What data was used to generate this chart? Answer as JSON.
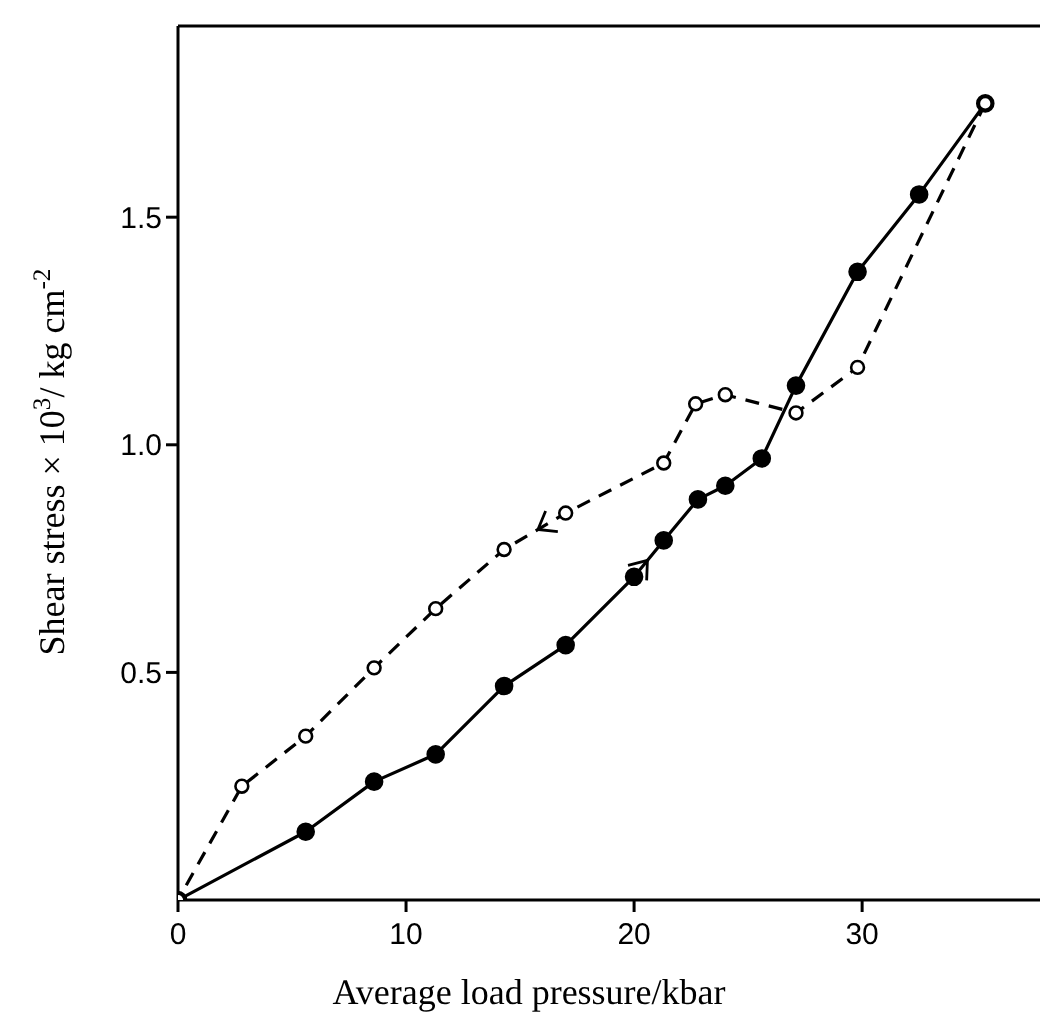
{
  "chart_data": {
    "type": "line",
    "xlabel": "Average load pressure/kbar",
    "ylabel": "Shear stress × 10$^{3}$/ kg cm$^{-2}$",
    "xlim": [
      0,
      37.8
    ],
    "xticks": [
      0,
      10,
      20,
      30
    ],
    "ylim": [
      0,
      1.92
    ],
    "yticks": [
      0.5,
      {
        "value": 1,
        "label": "1.0"
      },
      1.5
    ],
    "marker": "circle",
    "series": [
      {
        "color": "#000000",
        "line_style": "solid",
        "x": [
          0,
          5.6,
          8.6,
          11.3,
          14.3,
          17.0,
          20.0,
          21.3,
          22.8,
          24.0,
          25.6,
          27.1,
          29.8,
          32.5,
          35.4
        ],
        "values": [
          0,
          0.15,
          0.26,
          0.32,
          0.47,
          0.56,
          0.71,
          0.79,
          0.88,
          0.91,
          0.97,
          1.13,
          1.38,
          1.55,
          1.75
        ]
      },
      {
        "color": "#000000",
        "line_style": "dashed",
        "x": [
          35.4,
          29.8,
          27.1,
          24.0,
          22.7,
          21.3,
          17.0,
          14.3,
          11.3,
          8.6,
          5.6,
          2.8,
          0
        ],
        "values": [
          1.75,
          1.17,
          1.07,
          1.11,
          1.09,
          0.96,
          0.85,
          0.77,
          0.64,
          0.51,
          0.36,
          0.25,
          0
        ]
      }
    ]
  }
}
